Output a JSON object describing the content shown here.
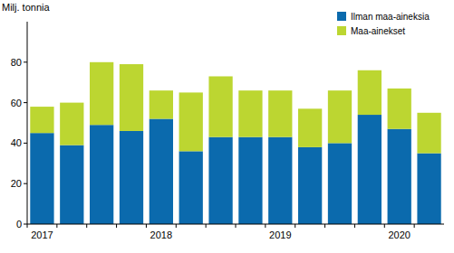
{
  "chart_data": {
    "type": "bar",
    "stacked": true,
    "y_label": "Milj. tonnia",
    "categories": [
      "2017",
      null,
      null,
      null,
      "2018",
      null,
      null,
      null,
      "2019",
      null,
      null,
      null,
      "2020",
      null
    ],
    "series": [
      {
        "name": "Ilman maa-aineksia",
        "color": "#0b6aad",
        "values": [
          45,
          39,
          49,
          46,
          52,
          36,
          43,
          43,
          43,
          38,
          40,
          54,
          47,
          35
        ]
      },
      {
        "name": "Maa-ainekset",
        "color": "#bcd631",
        "values": [
          13,
          21,
          31,
          33,
          14,
          29,
          30,
          23,
          23,
          19,
          26,
          22,
          20,
          20
        ]
      }
    ],
    "ylim": [
      0,
      100
    ],
    "yticks": [
      0,
      20,
      40,
      60,
      80
    ],
    "grid": false,
    "legend": "upper right"
  }
}
